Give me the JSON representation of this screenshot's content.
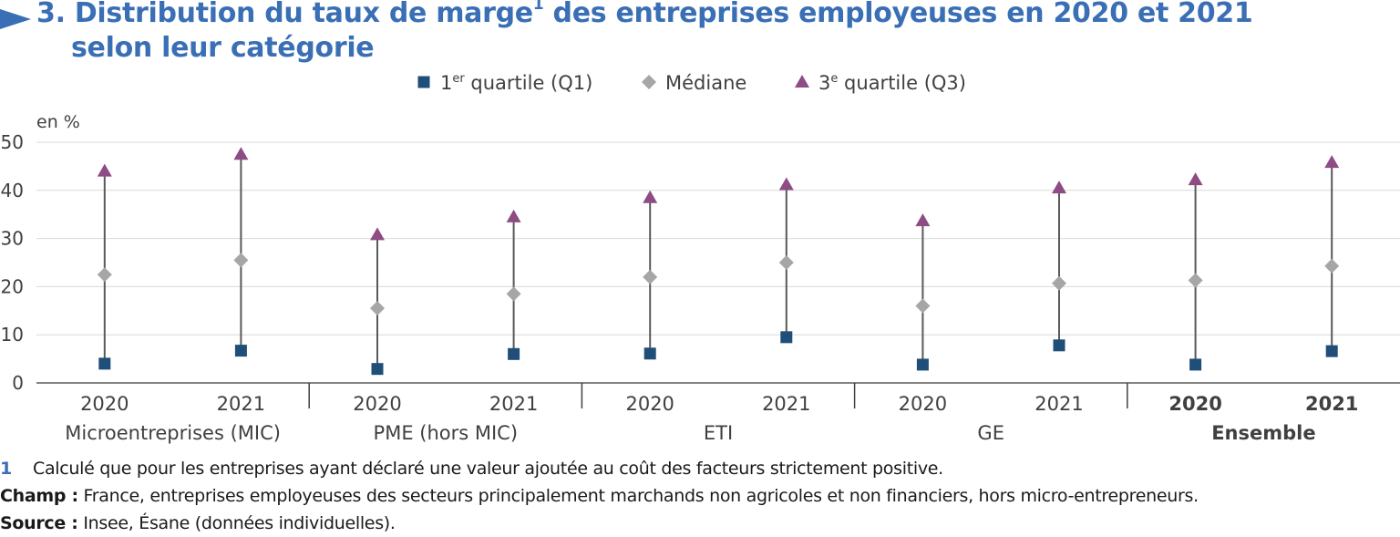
{
  "title": {
    "line1_main": "3. Distribution du taux de marge",
    "line1_sup": "1",
    "line1_rest": " des entreprises employeuses en 2020 et 2021",
    "line2": "selon leur catégorie"
  },
  "colors": {
    "title": "#3a6fb5",
    "q1": "#1f4e79",
    "median": "#a6a6a6",
    "q3": "#8e4b84",
    "whisker": "#595959",
    "grid": "#d9d9d9"
  },
  "chart_data": {
    "type": "scatter",
    "unit_label": "en %",
    "ylim": [
      0,
      50
    ],
    "yticks": [
      0,
      10,
      20,
      30,
      40,
      50
    ],
    "grid": true,
    "legend_position": "top",
    "legend": [
      {
        "key": "q1",
        "marker": "square",
        "base": "1",
        "sup": "er",
        "rest": " quartile (Q1)"
      },
      {
        "key": "median",
        "marker": "diamond",
        "base": "Médiane",
        "sup": "",
        "rest": ""
      },
      {
        "key": "q3",
        "marker": "triangle",
        "base": "3",
        "sup": "e",
        "rest": " quartile (Q3)"
      }
    ],
    "groups": [
      {
        "label": "Microentreprises (MIC)",
        "bold": false,
        "points": [
          {
            "year": "2020",
            "q1": 4.0,
            "median": 22.5,
            "q3": 44.0
          },
          {
            "year": "2021",
            "q1": 6.7,
            "median": 25.5,
            "q3": 47.5
          }
        ]
      },
      {
        "label": "PME (hors MIC)",
        "bold": false,
        "points": [
          {
            "year": "2020",
            "q1": 2.9,
            "median": 15.5,
            "q3": 30.8
          },
          {
            "year": "2021",
            "q1": 6.0,
            "median": 18.5,
            "q3": 34.5
          }
        ]
      },
      {
        "label": "ETI",
        "bold": false,
        "points": [
          {
            "year": "2020",
            "q1": 6.1,
            "median": 22.0,
            "q3": 38.5
          },
          {
            "year": "2021",
            "q1": 9.5,
            "median": 25.0,
            "q3": 41.2
          }
        ]
      },
      {
        "label": "GE",
        "bold": false,
        "points": [
          {
            "year": "2020",
            "q1": 3.8,
            "median": 16.0,
            "q3": 33.7
          },
          {
            "year": "2021",
            "q1": 7.8,
            "median": 20.7,
            "q3": 40.5
          }
        ]
      },
      {
        "label": "Ensemble",
        "bold": true,
        "points": [
          {
            "year": "2020",
            "q1": 3.8,
            "median": 21.3,
            "q3": 42.2
          },
          {
            "year": "2021",
            "q1": 6.6,
            "median": 24.3,
            "q3": 45.8
          }
        ]
      }
    ]
  },
  "footnotes": {
    "note_number": "1",
    "note_text": "Calculé que pour les entreprises ayant déclaré une valeur ajoutée au coût des facteurs strictement positive.",
    "champ_key": "Champ :",
    "champ_text": " France, entreprises employeuses des secteurs principalement marchands non agricoles et non financiers, hors micro-entrepreneurs.",
    "source_key": "Source :",
    "source_text": " Insee, Ésane (données individuelles)."
  }
}
